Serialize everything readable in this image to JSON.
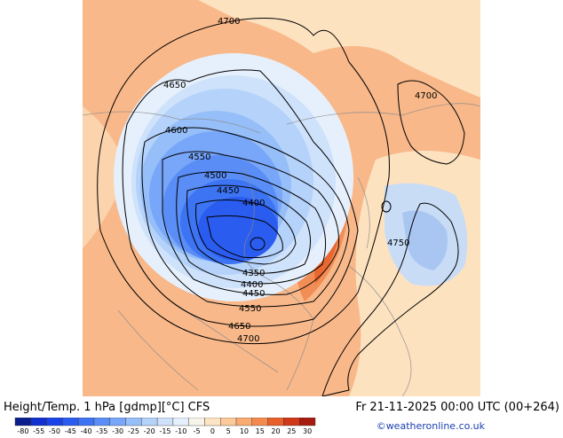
{
  "title": {
    "left": "Height/Temp. 1 hPa [gdmp][°C] CFS",
    "right": "Fr 21-11-2025 00:00 UTC (00+264)"
  },
  "credit": "©weatheronline.co.uk",
  "colorbar": {
    "ticks": [
      "-80",
      "-55",
      "-50",
      "-45",
      "-40",
      "-35",
      "-30",
      "-25",
      "-20",
      "-15",
      "-10",
      "-5",
      "0",
      "5",
      "10",
      "15",
      "20",
      "25",
      "30"
    ],
    "colors": [
      "#0a1e8c",
      "#1030d0",
      "#1a44e8",
      "#2a5cf0",
      "#3d74f4",
      "#5a8ef6",
      "#78a6f8",
      "#96bef8",
      "#b4d2fa",
      "#cfe2fb",
      "#e6f0fc",
      "#f7f4ea",
      "#fde4c4",
      "#fcc99a",
      "#f9ab72",
      "#f48a4e",
      "#e8602a",
      "#d03818",
      "#a81a10"
    ]
  },
  "contour_labels": {
    "l4700_top": "4700",
    "l4700_ne": "4700",
    "l4650_nw": "4650",
    "l4600": "4600",
    "l4550_n": "4550",
    "l4500": "4500",
    "l4450_n": "4450",
    "l4400_n": "4400",
    "l4350": "4350",
    "l4400_s": "4400",
    "l4450_s": "4450",
    "l4550_s": "4550",
    "l4650_s": "4650",
    "l4700_s": "4700",
    "l4750": "4750"
  }
}
